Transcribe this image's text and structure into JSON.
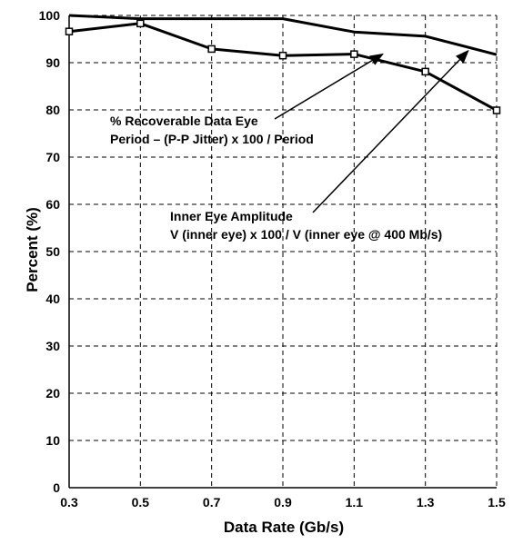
{
  "chart_data": {
    "type": "line",
    "xlabel": "Data Rate (Gb/s)",
    "ylabel": "Percent (%)",
    "x": [
      0.3,
      0.5,
      0.7,
      0.9,
      1.1,
      1.3,
      1.5
    ],
    "x_tick_labels": [
      "0.3",
      "0.5",
      "0.7",
      "0.9",
      "1.1",
      "1.3",
      "1.5"
    ],
    "y_tick_labels": [
      "0",
      "10",
      "20",
      "30",
      "40",
      "50",
      "60",
      "70",
      "80",
      "90",
      "100"
    ],
    "xlim": [
      0.3,
      1.5
    ],
    "ylim": [
      0,
      100
    ],
    "grid": "dashed",
    "series": [
      {
        "values": [
          100,
          99.3,
          99.3,
          99.3,
          96.5,
          95.6,
          91.7
        ],
        "marker": "none",
        "color": "#000000"
      },
      {
        "values": [
          96.6,
          98.3,
          92.9,
          91.5,
          91.8,
          88.1,
          79.9
        ],
        "marker": "open-square",
        "color": "#000000"
      }
    ],
    "annotations": [
      {
        "lines": [
          "% Recoverable Data Eye",
          "Period – (P-P Jitter) x 100 / Period"
        ],
        "points_to": [
          1.18,
          91.8
        ]
      },
      {
        "lines": [
          "Inner Eye Amplitude",
          "V (inner eye) x 100 / V (inner eye @ 400 Mb/s)"
        ],
        "points_to": [
          1.42,
          92.5
        ]
      }
    ]
  }
}
